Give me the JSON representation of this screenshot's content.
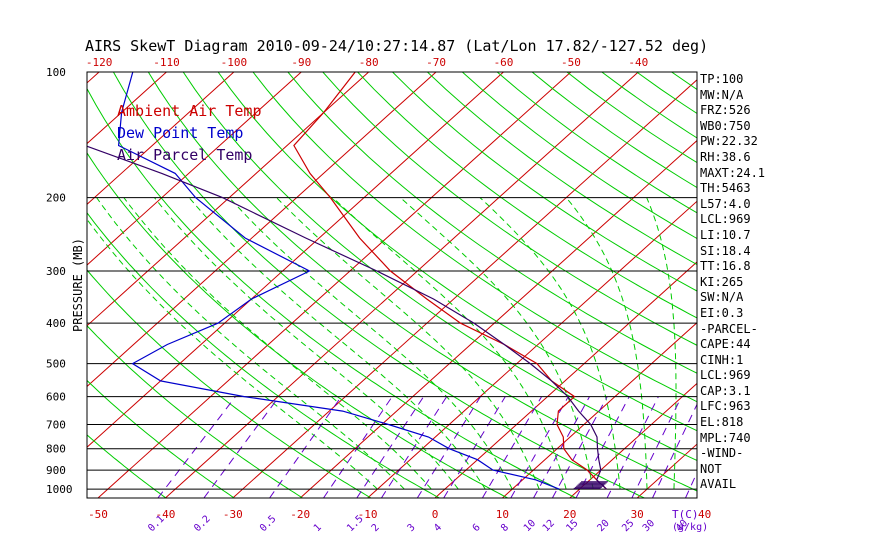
{
  "title": "AIRS SkewT Diagram 2010-09-24/10:27:14.87 (Lat/Lon 17.82/-127.52 deg)",
  "colors": {
    "ambient": "#cc0000",
    "dewpoint": "#0000cc",
    "parcel": "#330066",
    "isotherm": "#cc0000",
    "dry_adiabat": "#00cc00",
    "moist_adiabat": "#00cc00",
    "mixing_ratio": "#6600cc",
    "isobar": "#000000"
  },
  "legend": [
    {
      "label": "Ambient Air Temp",
      "color": "#cc0000"
    },
    {
      "label": "Dew Point Temp",
      "color": "#0000cc"
    },
    {
      "label": "Air Parcel Temp",
      "color": "#330066"
    }
  ],
  "side_panel": [
    "TP:100",
    "MW:N/A",
    "FRZ:526",
    "WB0:750",
    "PW:22.32",
    "RH:38.6",
    "MAXT:24.1",
    "TH:5463",
    "L57:4.0",
    "LCL:969",
    "LI:10.7",
    "SI:18.4",
    "TT:16.8",
    "KI:265",
    "SW:N/A",
    "EI:0.3",
    "-PARCEL-",
    "CAPE:44",
    "CINH:1",
    "LCL:969",
    "CAP:3.1",
    "LFC:963",
    "EL:818",
    "MPL:740",
    "-WIND-",
    "NOT",
    "AVAIL"
  ],
  "chart_data": {
    "type": "line",
    "title": "AIRS SkewT Diagram 2010-09-24/10:27:14.87 (Lat/Lon 17.82/-127.52 deg)",
    "ylabel": "PRESSURE (MB)",
    "xlabel_bottom_unit": "T(C)",
    "mixing_ratio_unit": "(g/kg)",
    "y_scale": "log",
    "ylim": [
      1050,
      100
    ],
    "y_ticks": [
      100,
      200,
      300,
      400,
      500,
      600,
      700,
      800,
      900,
      1000
    ],
    "top_ticks": [
      -120,
      -110,
      -100,
      -90,
      -80,
      -70,
      -60,
      -50,
      -40
    ],
    "bottom_ticks": [
      -50,
      -40,
      -30,
      -20,
      -10,
      0,
      10,
      20,
      30,
      40
    ],
    "mixing_ratio_labels": [
      "0.1",
      "0.2",
      "0.5",
      "1",
      "1.5",
      "2",
      "3",
      "4",
      "6",
      "8",
      "10",
      "12",
      "15",
      "20",
      "25",
      "30",
      "40"
    ],
    "grid": true,
    "series": [
      {
        "name": "Ambient Air Temp",
        "pressure": [
          100,
          125,
          150,
          175,
          200,
          250,
          300,
          350,
          400,
          450,
          500,
          550,
          600,
          650,
          700,
          750,
          800,
          850,
          900,
          950,
          1000
        ],
        "temperature": [
          -82,
          -80,
          -79,
          -72,
          -65,
          -54,
          -44,
          -34,
          -25,
          -15,
          -7,
          -2,
          4,
          4,
          6,
          9,
          11,
          14,
          18,
          21,
          24
        ]
      },
      {
        "name": "Dew Point Temp",
        "pressure": [
          100,
          125,
          150,
          175,
          200,
          250,
          300,
          350,
          400,
          450,
          500,
          550,
          600,
          650,
          700,
          750,
          800,
          850,
          900,
          950,
          1000
        ],
        "temperature": [
          -115,
          -110,
          -105,
          -92,
          -85,
          -71,
          -56,
          -60,
          -61,
          -65,
          -67,
          -60,
          -45,
          -28,
          -19,
          -11,
          -6,
          0,
          4,
          12,
          17
        ]
      },
      {
        "name": "Air Parcel Temp",
        "pressure": [
          100,
          125,
          150,
          175,
          200,
          250,
          300,
          350,
          400,
          450,
          500,
          550,
          600,
          650,
          700,
          750,
          800,
          850,
          900,
          950,
          1000
        ],
        "temperature": [
          -150,
          -131,
          -110,
          -94,
          -81,
          -62,
          -46,
          -33,
          -23,
          -15,
          -8,
          -2,
          3,
          7,
          11,
          14,
          16,
          18,
          20,
          21,
          24
        ]
      }
    ]
  }
}
